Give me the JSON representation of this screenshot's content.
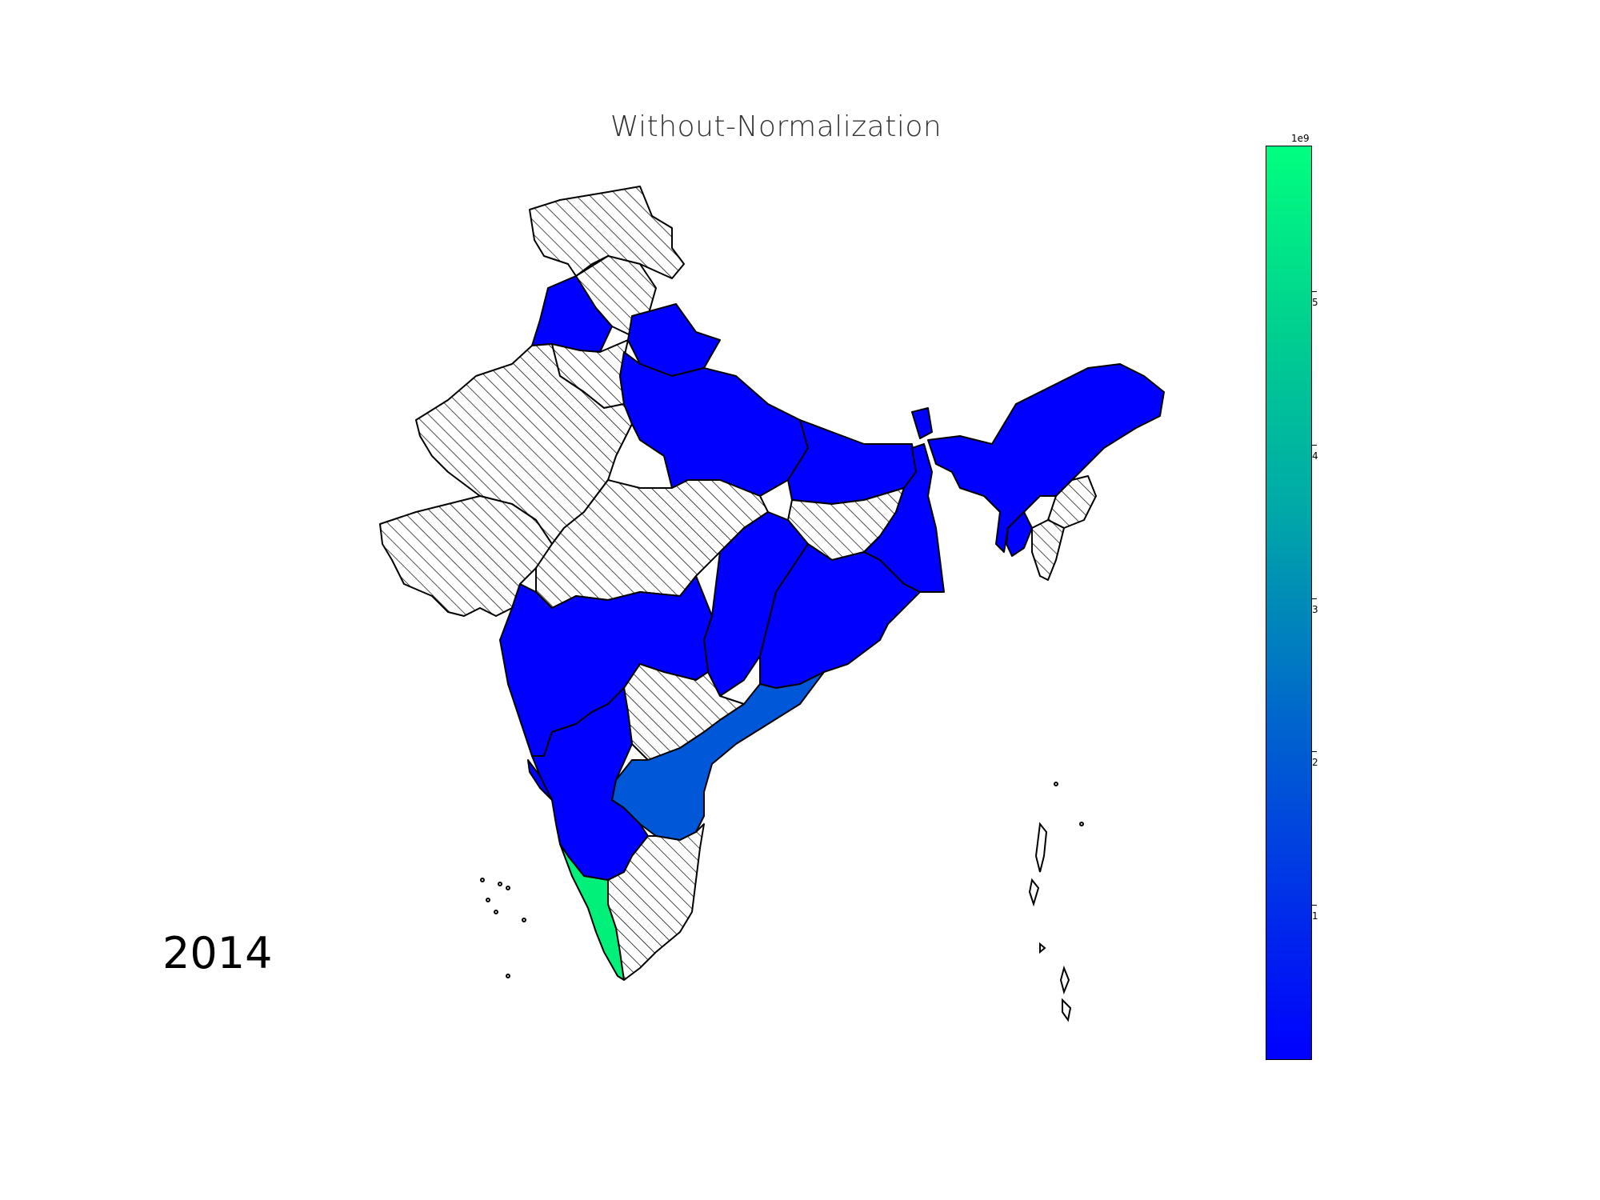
{
  "title": "Without-Normalization",
  "year": "2014",
  "colorbar": {
    "exponent": "1e9",
    "ticks": [
      "1",
      "2",
      "3",
      "4",
      "5"
    ],
    "tick_values": [
      1,
      2,
      3,
      4,
      5
    ],
    "min": 0,
    "max": 5.95,
    "colors": {
      "low": "#0000ff",
      "high": "#00ff7f"
    }
  },
  "colors": {
    "blue": "#0000ff",
    "mid_blue": "#0058d8",
    "green": "#00f07a",
    "nodata": "hatched"
  }
}
